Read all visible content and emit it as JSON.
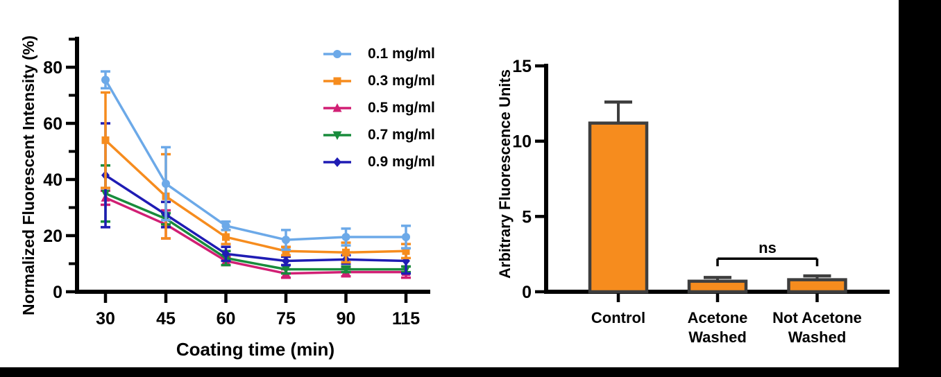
{
  "figure": {
    "background": "#ffffff",
    "band_color": "#000000"
  },
  "chart_data": [
    {
      "type": "line",
      "title": "",
      "xlabel": "Coating time (min)",
      "ylabel": "Normalized Fluorescent Intensity (%)",
      "x_tick_labels": [
        "30",
        "45",
        "60",
        "75",
        "90",
        "115"
      ],
      "y_major_ticks": [
        0,
        20,
        40,
        60,
        80
      ],
      "y_minor_ticks": [
        10,
        30,
        50,
        70,
        90
      ],
      "ylim": [
        0,
        91
      ],
      "grid": false,
      "legend_position": "top-right",
      "error_bars": true,
      "series": [
        {
          "name": "0.1 mg/ml",
          "marker": "circle",
          "color": "#6CA9E8",
          "values": [
            75.5,
            38.5,
            23.5,
            18.5,
            19.5,
            19.5
          ],
          "errors": [
            3,
            13,
            1.5,
            3.5,
            3,
            4
          ]
        },
        {
          "name": "0.3 mg/ml",
          "marker": "square",
          "color": "#F68C1E",
          "values": [
            54,
            34,
            19.5,
            14.5,
            14,
            14.5
          ],
          "errors": [
            17,
            15,
            2.5,
            1.5,
            3.5,
            2.5
          ]
        },
        {
          "name": "0.5 mg/ml",
          "marker": "triangle-up",
          "color": "#D11F74",
          "values": [
            33.5,
            24,
            11,
            6.5,
            7,
            7
          ],
          "errors": [
            2.5,
            5,
            1.5,
            1.5,
            1.5,
            2
          ]
        },
        {
          "name": "0.7 mg/ml",
          "marker": "triangle-down",
          "color": "#188C3C",
          "values": [
            35,
            26,
            12,
            8,
            8,
            8
          ],
          "errors": [
            10,
            2,
            2.5,
            1.5,
            1,
            1
          ]
        },
        {
          "name": "0.9 mg/ml",
          "marker": "diamond",
          "color": "#1F1CB4",
          "values": [
            41.5,
            27.5,
            13.5,
            11,
            11.5,
            11
          ],
          "errors": [
            18.5,
            4.5,
            2.5,
            1.5,
            1.5,
            4.5
          ]
        }
      ]
    },
    {
      "type": "bar",
      "title": "",
      "xlabel": "",
      "ylabel": "Arbitrary Fluorescence Units",
      "categories": [
        "Control",
        "Acetone\nWashed",
        "Not Acetone\nWashed"
      ],
      "values": [
        11.2,
        0.7,
        0.8
      ],
      "errors": [
        1.4,
        0.25,
        0.25
      ],
      "y_major_ticks": [
        0,
        5,
        10,
        15
      ],
      "ylim": [
        0,
        15.3
      ],
      "grid": false,
      "bar_color": "#F68C1E",
      "bar_outline_color": "#3E3E3E",
      "error_color": "#3E3E3E",
      "annotation": {
        "text": "ns",
        "between": [
          "Acetone\nWashed",
          "Not Acetone\nWashed"
        ],
        "y": 2.2
      }
    }
  ]
}
